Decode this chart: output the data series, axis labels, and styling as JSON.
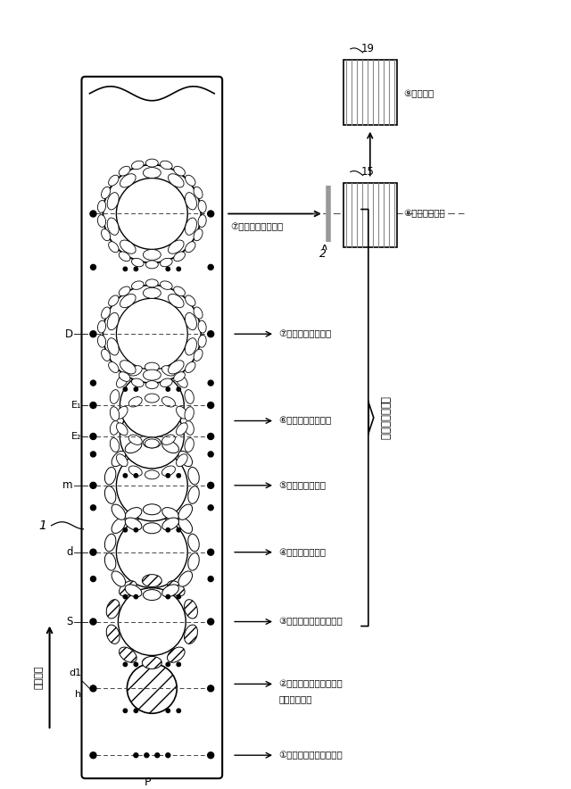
{
  "bg_color": "#ffffff",
  "labels": {
    "step1": "①パイロット水打抜加工",
    "step2_l1": "②内径対应寄せもの加工",
    "step2_l2": "内径対应加工",
    "step3": "③パイロット水打抜加工",
    "step4": "④山形水打抜加工",
    "step5": "⑤山形水打抜加工",
    "step6": "⑥水形延伸共受加工",
    "step7": "⑦外形水打抜き加工",
    "step8": "⑧回転積層加工",
    "step9": "⑨分離加工",
    "brace_label": "前半打抜き工程",
    "okuri": "送り方向"
  }
}
